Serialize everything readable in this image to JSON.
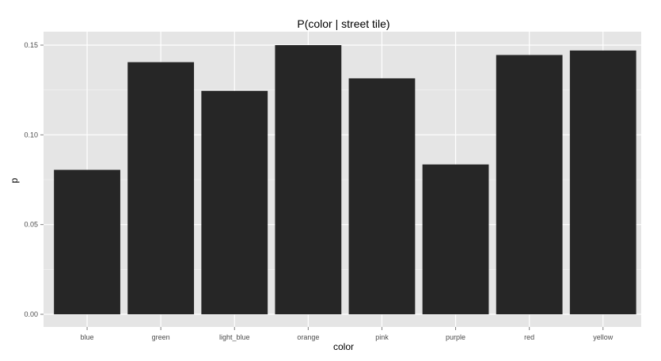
{
  "chart_data": {
    "type": "bar",
    "title": "P(color | street tile)",
    "xlabel": "color",
    "ylabel": "p",
    "categories": [
      "blue",
      "green",
      "light_blue",
      "orange",
      "pink",
      "purple",
      "red",
      "yellow"
    ],
    "values": [
      0.0805,
      0.1405,
      0.1245,
      0.15,
      0.1315,
      0.0835,
      0.1445,
      0.147
    ],
    "ylim": [
      0,
      0.15
    ],
    "yticks": [
      "0.00",
      "0.05",
      "0.10",
      "0.15"
    ],
    "grid": true,
    "colors": {
      "panel_background": "#e5e5e5",
      "gridline": "#ffffff",
      "bar_fill": "#262626",
      "tick_label": "#4d4d4d"
    }
  }
}
